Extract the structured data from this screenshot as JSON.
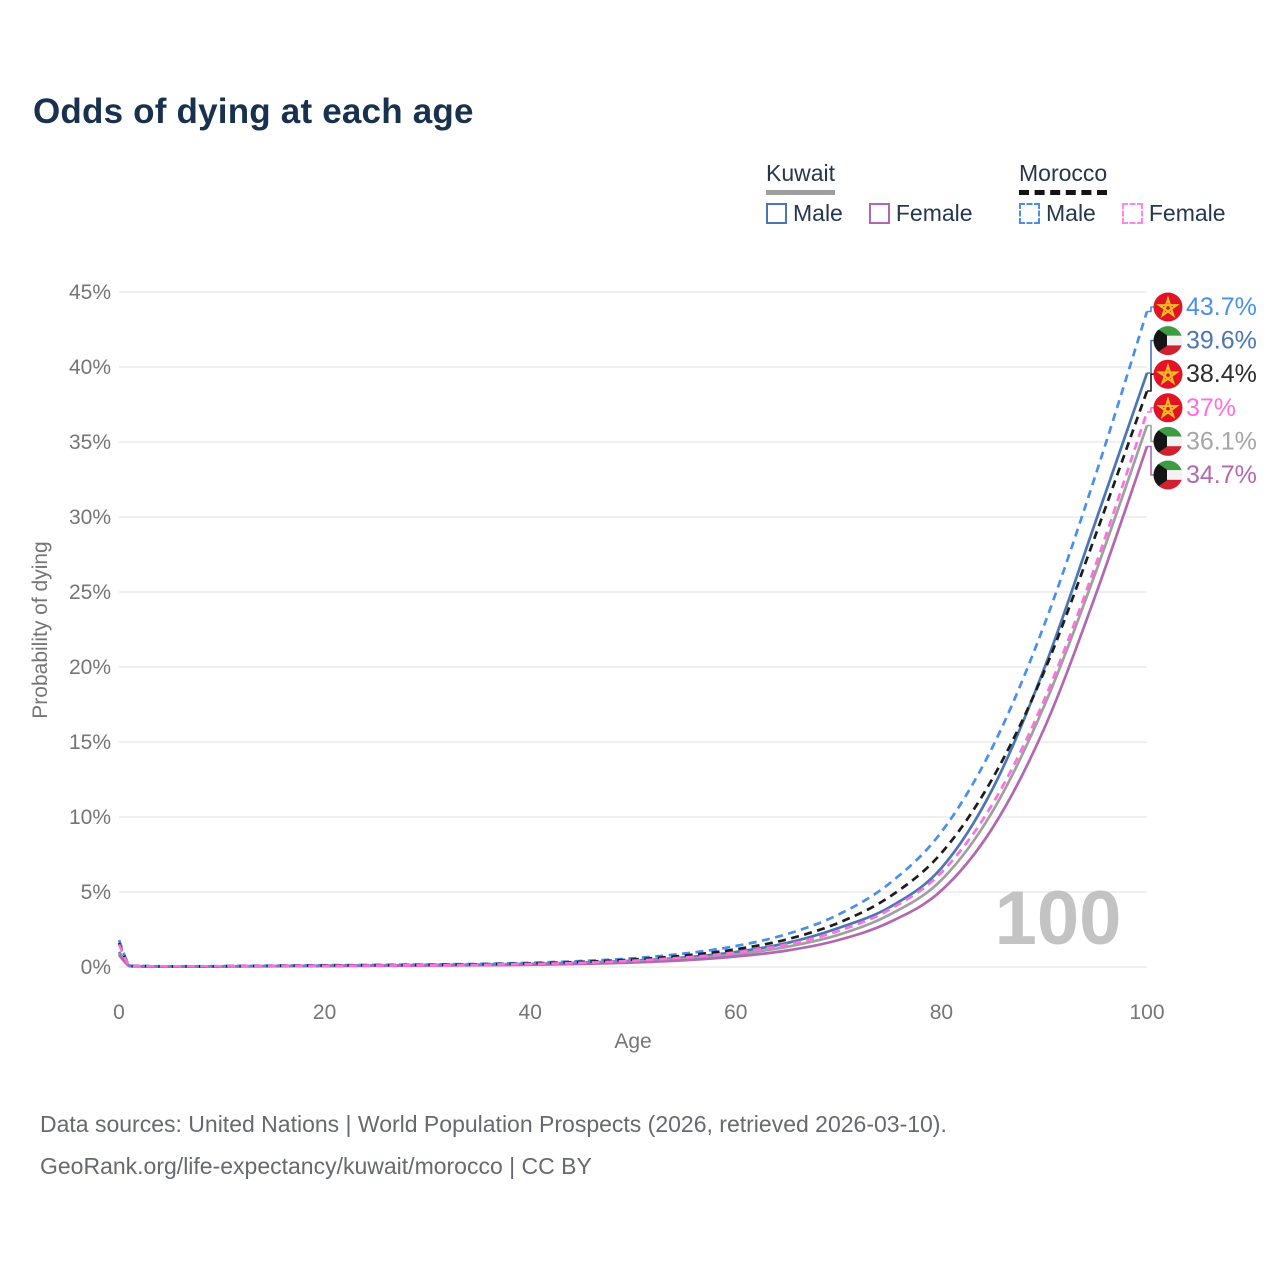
{
  "title": "Odds of dying at each age",
  "legend": {
    "groups": [
      {
        "country": "Kuwait",
        "line_style": "solid",
        "line_color": "#9e9e9e",
        "items": [
          {
            "label": "Male",
            "color": "#4a77b4",
            "dashed": false
          },
          {
            "label": "Female",
            "color": "#b168b1",
            "dashed": false
          }
        ]
      },
      {
        "country": "Morocco",
        "line_style": "dashed",
        "line_color": "#141414",
        "items": [
          {
            "label": "Male",
            "color": "#4a90e8",
            "dashed": true
          },
          {
            "label": "Female",
            "color": "#ff85e6",
            "dashed": true
          }
        ]
      }
    ]
  },
  "watermark": "100",
  "chart_data": {
    "type": "line",
    "title": "Odds of dying at each age",
    "xlabel": "Age",
    "ylabel": "Probability of dying",
    "xlim": [
      0,
      100
    ],
    "ylim": [
      0,
      45
    ],
    "x_ticks": [
      0,
      20,
      40,
      60,
      80,
      100
    ],
    "y_ticks": [
      0,
      5,
      10,
      15,
      20,
      25,
      30,
      35,
      40,
      45
    ],
    "y_tick_suffix": "%",
    "grid": "horizontal",
    "legend_position": "top-right",
    "x": [
      0,
      1,
      2,
      3,
      5,
      10,
      15,
      20,
      25,
      30,
      35,
      40,
      45,
      50,
      55,
      60,
      65,
      70,
      75,
      80,
      85,
      90,
      95,
      100
    ],
    "series": [
      {
        "name": "Morocco Male",
        "flag": "morocco",
        "dashed": true,
        "color": "#4a90e8",
        "label_color": "#4a90e8",
        "end_label": "43.7%",
        "end_value": 43.7,
        "values": [
          1.8,
          0.12,
          0.08,
          0.06,
          0.05,
          0.06,
          0.09,
          0.12,
          0.14,
          0.17,
          0.21,
          0.28,
          0.4,
          0.58,
          0.9,
          1.4,
          2.2,
          3.5,
          5.6,
          9.0,
          14.7,
          22.8,
          32.8,
          43.7
        ]
      },
      {
        "name": "Kuwait Male",
        "flag": "kuwait",
        "dashed": false,
        "color": "#4a77b4",
        "label_color": "#4a77b4",
        "end_label": "39.6%",
        "end_value": 39.6,
        "values": [
          1.0,
          0.08,
          0.05,
          0.04,
          0.03,
          0.04,
          0.07,
          0.09,
          0.11,
          0.13,
          0.16,
          0.21,
          0.29,
          0.42,
          0.63,
          1.0,
          1.6,
          2.6,
          4.0,
          6.6,
          11.9,
          19.9,
          29.7,
          39.6
        ]
      },
      {
        "name": "Morocco Both sexes",
        "flag": "morocco",
        "dashed": true,
        "color": "#1c1c1c",
        "label_color": "#2d2d2d",
        "end_label": "38.4%",
        "end_value": 38.4,
        "values": [
          1.6,
          0.1,
          0.07,
          0.05,
          0.04,
          0.05,
          0.08,
          0.1,
          0.12,
          0.15,
          0.18,
          0.24,
          0.34,
          0.5,
          0.76,
          1.18,
          1.85,
          2.95,
          4.7,
          7.6,
          12.6,
          19.7,
          28.8,
          38.4
        ]
      },
      {
        "name": "Morocco Female",
        "flag": "morocco",
        "dashed": true,
        "color": "#ff6fdf",
        "label_color": "#ff6fdf",
        "end_label": "37%",
        "end_value": 37,
        "values": [
          1.5,
          0.09,
          0.06,
          0.05,
          0.04,
          0.05,
          0.07,
          0.08,
          0.1,
          0.12,
          0.15,
          0.2,
          0.28,
          0.42,
          0.63,
          0.97,
          1.5,
          2.4,
          3.85,
          6.3,
          10.9,
          17.8,
          26.8,
          37.0
        ]
      },
      {
        "name": "Kuwait Both sexes",
        "flag": "kuwait",
        "dashed": false,
        "color": "#a0a0a0",
        "label_color": "#a6a6a6",
        "end_label": "36.1%",
        "end_value": 36.1,
        "values": [
          0.9,
          0.07,
          0.04,
          0.03,
          0.03,
          0.04,
          0.06,
          0.08,
          0.1,
          0.11,
          0.14,
          0.18,
          0.25,
          0.36,
          0.54,
          0.85,
          1.35,
          2.15,
          3.5,
          5.8,
          10.4,
          17.4,
          26.3,
          36.1
        ]
      },
      {
        "name": "Kuwait Female",
        "flag": "kuwait",
        "dashed": false,
        "color": "#b168b1",
        "label_color": "#b168b1",
        "end_label": "34.7%",
        "end_value": 34.7,
        "values": [
          0.8,
          0.06,
          0.04,
          0.03,
          0.02,
          0.03,
          0.05,
          0.06,
          0.08,
          0.1,
          0.12,
          0.15,
          0.21,
          0.3,
          0.45,
          0.7,
          1.1,
          1.8,
          3.0,
          5.1,
          9.3,
          15.9,
          24.8,
          34.7
        ]
      }
    ]
  },
  "footer": {
    "line1": "Data sources: United Nations | World Population Prospects (2026, retrieved 2026-03-10).",
    "line2": "GeoRank.org/life-expectancy/kuwait/morocco | CC BY"
  }
}
